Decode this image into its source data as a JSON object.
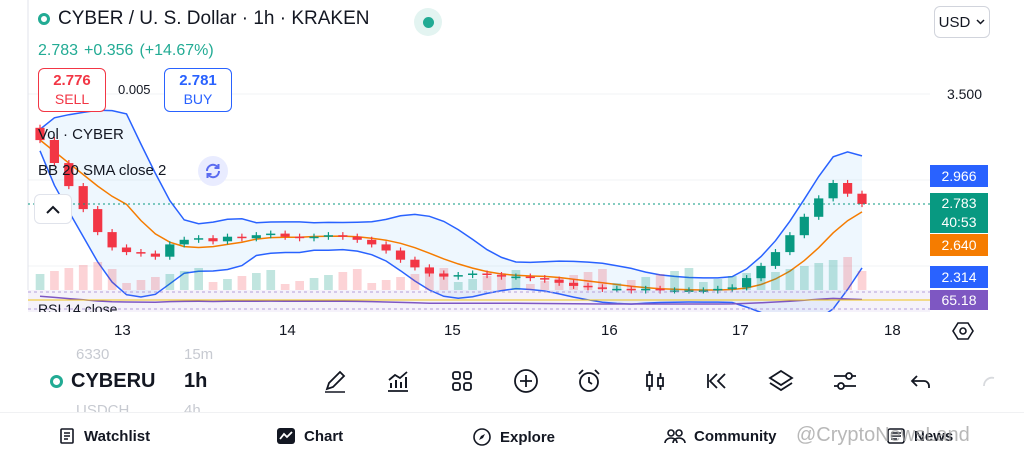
{
  "header": {
    "title": "CYBER / U. S. Dollar · 1h · KRAKEN",
    "currency": "USD",
    "last_price": "2.783",
    "change": "+0.356",
    "change_pct": "(+14.67%)"
  },
  "trade": {
    "sell_price": "2.776",
    "sell_label": "SELL",
    "spread": "0.005",
    "buy_price": "2.781",
    "buy_label": "BUY"
  },
  "indicators": {
    "volume": "Vol · CYBER",
    "bollinger": "BB 20 SMA close 2",
    "rsi": "RSI 14 close"
  },
  "price_axis": {
    "visible_label": "3.500",
    "tags": [
      {
        "value": "2.966",
        "color": "#2962ff"
      },
      {
        "value": "2.783",
        "sub": "40:53",
        "color": "#089981"
      },
      {
        "value": "2.640",
        "color": "#f57c00"
      },
      {
        "value": "2.314",
        "color": "#2962ff"
      },
      {
        "value": "65.18",
        "color": "#7e57c2"
      }
    ]
  },
  "time_axis": [
    "13",
    "14",
    "15",
    "16",
    "17",
    "18"
  ],
  "toolbar": {
    "ghost_price": "6330",
    "ghost_tf": "15m",
    "ghost_symbol": "USDCH",
    "ghost_tf2": "4h",
    "symbol": "CYBERU",
    "timeframe": "1h",
    "icons": [
      "pen-icon",
      "chart-trend-icon",
      "grid-icon",
      "plus-circle-icon",
      "alarm-icon",
      "candles-icon",
      "rewind-icon",
      "layers-icon",
      "sliders-icon",
      "undo-icon",
      "redo-icon"
    ]
  },
  "nav": {
    "watchlist": "Watchlist",
    "chart": "Chart",
    "explore": "Explore",
    "community": "Community",
    "news": "News"
  },
  "watermark": "@CryptoNewsLand",
  "colors": {
    "up": "#089981",
    "down": "#f23645",
    "bb_band": "#2962ff",
    "bb_basis": "#f57c00",
    "rsi": "#7e57c2"
  },
  "chart_data": {
    "type": "candlestick",
    "symbol": "CYBER/USD",
    "timeframe": "1h",
    "x_ticks": [
      "13",
      "14",
      "15",
      "16",
      "17",
      "18"
    ],
    "candles_close": [
      3.2,
      3.05,
      2.9,
      2.75,
      2.6,
      2.5,
      2.47,
      2.46,
      2.44,
      2.52,
      2.55,
      2.56,
      2.54,
      2.57,
      2.56,
      2.58,
      2.59,
      2.57,
      2.56,
      2.57,
      2.58,
      2.57,
      2.55,
      2.52,
      2.48,
      2.42,
      2.37,
      2.33,
      2.31,
      2.32,
      2.33,
      2.32,
      2.31,
      2.31,
      2.3,
      2.29,
      2.27,
      2.25,
      2.24,
      2.23,
      2.23,
      2.22,
      2.23,
      2.22,
      2.22,
      2.22,
      2.22,
      2.23,
      2.24,
      2.3,
      2.38,
      2.47,
      2.58,
      2.7,
      2.82,
      2.92,
      2.85,
      2.783
    ],
    "bb_upper_end": 2.966,
    "bb_basis_end": 2.64,
    "bb_lower_end": 2.314,
    "rsi_last": 65.18
  }
}
